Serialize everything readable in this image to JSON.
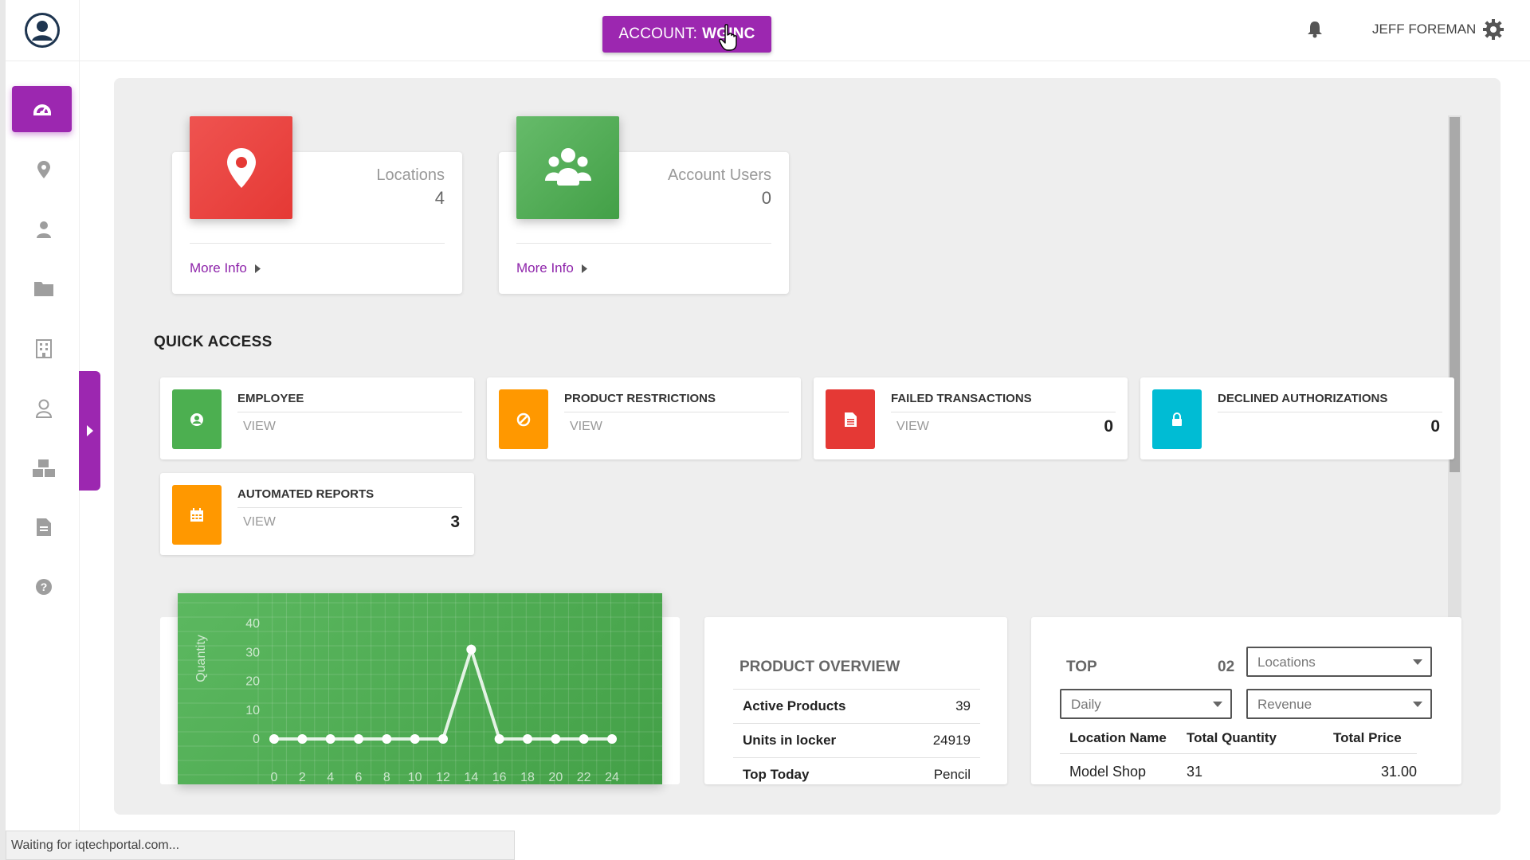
{
  "topbar": {
    "account_prefix": "ACCOUNT:",
    "account_value": "WGINC",
    "user_name": "JEFF FOREMAN"
  },
  "sidebar": {
    "items": [
      {
        "icon": "dashboard-icon",
        "active": true
      },
      {
        "icon": "location-pin-icon"
      },
      {
        "icon": "user-icon"
      },
      {
        "icon": "folder-icon"
      },
      {
        "icon": "building-icon"
      },
      {
        "icon": "user-outline-icon"
      },
      {
        "icon": "boxes-icon"
      },
      {
        "icon": "document-icon"
      },
      {
        "icon": "help-icon"
      }
    ]
  },
  "stats": {
    "locations": {
      "label": "Locations",
      "value": "4",
      "link": "More Info"
    },
    "account_users": {
      "label": "Account Users",
      "value": "0",
      "link": "More Info"
    }
  },
  "quick_access": {
    "title": "QUICK ACCESS",
    "employee": {
      "title": "EMPLOYEE",
      "view": "VIEW"
    },
    "product_restrictions": {
      "title": "PRODUCT RESTRICTIONS",
      "view": "VIEW"
    },
    "failed_transactions": {
      "title": "FAILED TRANSACTIONS",
      "view": "VIEW",
      "count": "0"
    },
    "declined_authorizations": {
      "title": "DECLINED AUTHORIZATIONS",
      "count": "0"
    },
    "automated_reports": {
      "title": "AUTOMATED REPORTS",
      "view": "VIEW",
      "count": "3"
    }
  },
  "chart_data": {
    "type": "line",
    "ylabel": "Quantity",
    "xlabel": "",
    "x": [
      0,
      2,
      4,
      6,
      8,
      10,
      12,
      14,
      16,
      18,
      20,
      22,
      24
    ],
    "series": [
      {
        "values": [
          0,
          0,
          0,
          0,
          0,
          0,
          0,
          31,
          0,
          0,
          0,
          0,
          0
        ]
      }
    ],
    "ylim": [
      0,
      40
    ],
    "yticks": [
      0,
      10,
      20,
      30,
      40
    ],
    "grid": true
  },
  "product_overview": {
    "title": "PRODUCT OVERVIEW",
    "rows": [
      {
        "label": "Active Products",
        "value": "39"
      },
      {
        "label": "Units in locker",
        "value": "24919"
      },
      {
        "label": "Top Today",
        "value": "Pencil"
      }
    ]
  },
  "top": {
    "title": "TOP",
    "count": "02",
    "select_group": "Locations",
    "select_period": "Daily",
    "select_metric": "Revenue",
    "columns": [
      "Location Name",
      "Total Quantity",
      "Total Price"
    ],
    "rows": [
      [
        "Model Shop",
        "31",
        "31.00"
      ]
    ]
  },
  "status_bar": "Waiting for iqtechportal.com...",
  "colors": {
    "accent": "#9c27b0",
    "red": "#e53935",
    "green": "#4caf50",
    "orange": "#ff9800",
    "cyan": "#00bcd4"
  }
}
